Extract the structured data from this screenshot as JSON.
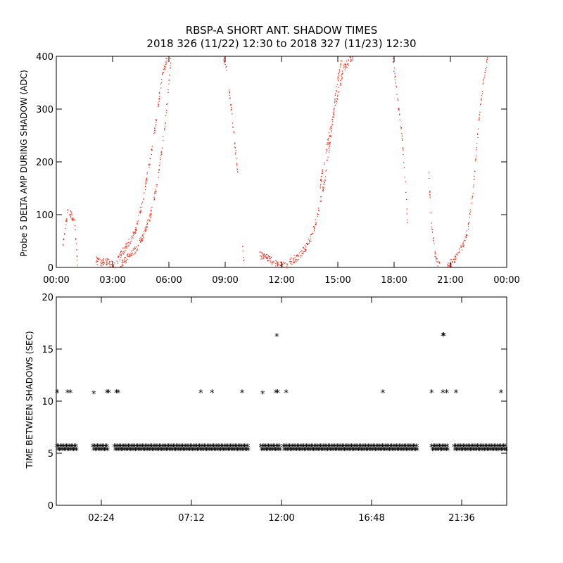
{
  "chart_data": [
    {
      "type": "scatter",
      "title": "RBSP-A SHORT ANT. SHADOW TIMES",
      "subtitle": "2018 326 (11/22) 12:30 to 2018 327 (11/23) 12:30",
      "xlabel": "",
      "ylabel": "Probe 5 DELTA AMP DURING SHADOW (ADC)",
      "xlim": [
        0,
        24
      ],
      "ylim": [
        0,
        400
      ],
      "xtick_values": [
        0,
        3,
        6,
        9,
        12,
        15,
        18,
        21,
        24
      ],
      "xtick_labels": [
        "00:00",
        "03:00",
        "06:00",
        "09:00",
        "12:00",
        "15:00",
        "18:00",
        "21:00",
        "00:00"
      ],
      "ytick_values": [
        0,
        100,
        200,
        300,
        400
      ],
      "ytick_labels": [
        "0",
        "100",
        "200",
        "300",
        "400"
      ],
      "color": "#e8321e",
      "grid": false,
      "series": [
        {
          "x": [
            0.3,
            0.6,
            0.95,
            1.05,
            1.1
          ],
          "values": [
            35,
            110,
            90,
            40,
            5
          ]
        },
        {
          "x": [
            2.1,
            2.3,
            2.6,
            2.9,
            3.1
          ],
          "values": [
            15,
            10,
            12,
            8,
            3
          ]
        },
        {
          "x": [
            3.2,
            3.5,
            3.8,
            4.2,
            4.6,
            5.0,
            5.3,
            5.6,
            5.9
          ],
          "values": [
            10,
            30,
            45,
            70,
            130,
            210,
            280,
            360,
            400
          ]
        },
        {
          "x": [
            3.4,
            3.8,
            4.2,
            4.6,
            5.0,
            5.4,
            5.8,
            6.1
          ],
          "values": [
            5,
            20,
            35,
            60,
            100,
            170,
            280,
            400
          ]
        },
        {
          "x": [
            8.9,
            9.1,
            9.3,
            9.5,
            9.7
          ],
          "values": [
            400,
            370,
            300,
            230,
            160
          ]
        },
        {
          "x": [
            9.9,
            10.0
          ],
          "values": [
            40,
            10
          ]
        },
        {
          "x": [
            10.8,
            11.2,
            11.6,
            12.0,
            12.3
          ],
          "values": [
            25,
            20,
            10,
            5,
            3
          ]
        },
        {
          "x": [
            12.4,
            12.8,
            13.2,
            13.6,
            13.9,
            14.3,
            14.6,
            14.9,
            15.2
          ],
          "values": [
            10,
            20,
            35,
            60,
            100,
            170,
            250,
            340,
            400
          ]
        },
        {
          "x": [
            14.0,
            14.4,
            14.8,
            15.3,
            15.8
          ],
          "values": [
            150,
            230,
            300,
            380,
            400
          ]
        },
        {
          "x": [
            17.9,
            18.1,
            18.4,
            18.6,
            18.7
          ],
          "values": [
            400,
            340,
            250,
            150,
            80
          ]
        },
        {
          "x": [
            19.8,
            19.95,
            20.2,
            20.4
          ],
          "values": [
            200,
            90,
            15,
            5
          ]
        },
        {
          "x": [
            20.8,
            21.2,
            21.6,
            21.9,
            22.2,
            22.5,
            22.8,
            23.0
          ],
          "values": [
            3,
            15,
            40,
            70,
            150,
            280,
            370,
            400
          ]
        }
      ]
    },
    {
      "type": "scatter",
      "title": "",
      "xlabel": "",
      "ylabel": "TIME BETWEEN SHADOWS (SEC)",
      "xlim": [
        0,
        24
      ],
      "ylim": [
        0,
        20
      ],
      "xtick_values": [
        2.4,
        7.2,
        12.0,
        16.8,
        21.6
      ],
      "xtick_labels": [
        "02:24",
        "07:12",
        "12:00",
        "16:48",
        "21:36"
      ],
      "ytick_values": [
        0,
        5,
        10,
        15,
        20
      ],
      "ytick_labels": [
        "0",
        "5",
        "10",
        "15",
        "20"
      ],
      "color": "#000000",
      "marker": "asterisk",
      "grid": false,
      "baseline_segments": [
        [
          0.05,
          1.1
        ],
        [
          1.95,
          2.7
        ],
        [
          3.1,
          10.2
        ],
        [
          10.9,
          11.9
        ],
        [
          12.1,
          19.2
        ],
        [
          20.0,
          20.9
        ],
        [
          21.2,
          24.0
        ]
      ],
      "baseline_value": 5.4,
      "outliers": {
        "x": [
          0.05,
          0.6,
          0.75,
          2.0,
          2.7,
          2.8,
          3.2,
          3.3,
          7.7,
          8.3,
          9.9,
          11.0,
          11.7,
          11.8,
          12.25,
          17.4,
          20.0,
          20.6,
          20.8,
          21.3,
          23.7,
          11.75,
          20.6,
          20.65
        ],
        "values": [
          10.8,
          10.8,
          10.8,
          10.7,
          10.8,
          10.8,
          10.8,
          10.8,
          10.8,
          10.8,
          10.8,
          10.7,
          10.8,
          10.8,
          10.8,
          10.8,
          10.8,
          10.8,
          10.8,
          10.8,
          10.8,
          16.2,
          16.3,
          16.3
        ]
      }
    }
  ]
}
